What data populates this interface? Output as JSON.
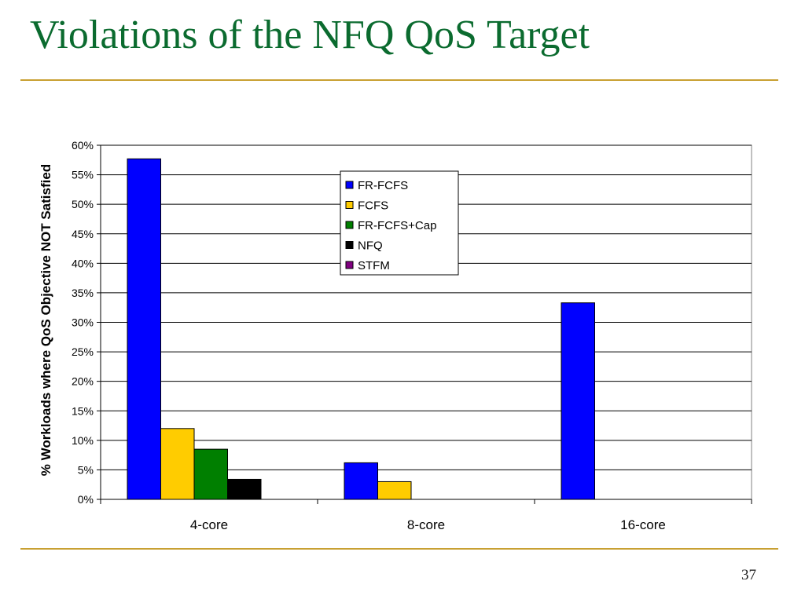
{
  "slide": {
    "title": "Violations of the NFQ QoS Target",
    "page_number": "37"
  },
  "colors": {
    "title": "#0b6b2f",
    "rule": "#c8a032"
  },
  "chart_data": {
    "type": "bar",
    "title": "",
    "xlabel": "",
    "ylabel": "% Workloads where QoS Objective NOT Satisfied",
    "categories": [
      "4-core",
      "8-core",
      "16-core"
    ],
    "ylim": [
      0,
      60
    ],
    "yticks": [
      0,
      5,
      10,
      15,
      20,
      25,
      30,
      35,
      40,
      45,
      50,
      55,
      60
    ],
    "ytick_suffix": "%",
    "grid": true,
    "legend_position": "top-center",
    "series": [
      {
        "name": "FR-FCFS",
        "color": "#0000ff",
        "values": [
          57.7,
          6.2,
          33.3
        ]
      },
      {
        "name": "FCFS",
        "color": "#ffcc00",
        "values": [
          12.0,
          3.0,
          0
        ]
      },
      {
        "name": "FR-FCFS+Cap",
        "color": "#007f00",
        "values": [
          8.5,
          0,
          0
        ]
      },
      {
        "name": "NFQ",
        "color": "#000000",
        "values": [
          3.4,
          0,
          0
        ]
      },
      {
        "name": "STFM",
        "color": "#7f007f",
        "values": [
          0,
          0,
          0
        ]
      }
    ]
  }
}
